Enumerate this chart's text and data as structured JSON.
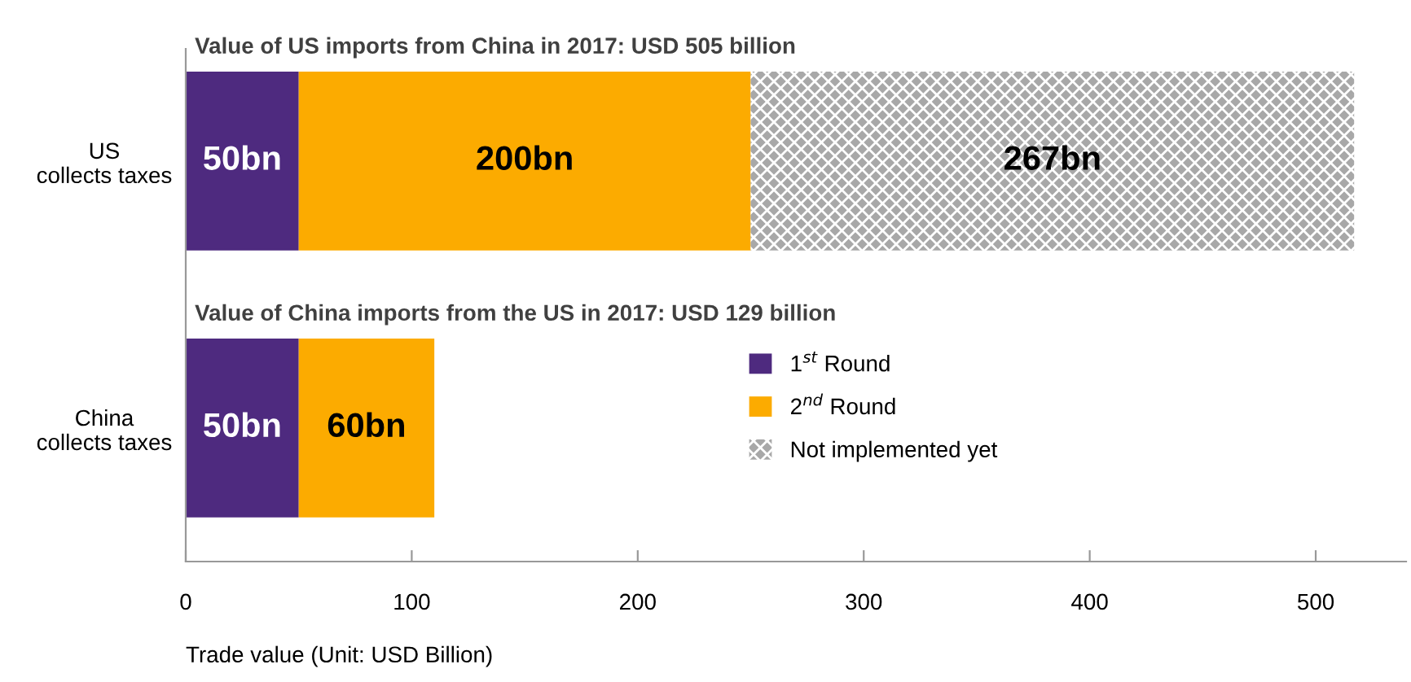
{
  "chart_data": {
    "type": "bar",
    "orientation": "horizontal",
    "stacked": true,
    "categories": [
      "US\ncollects taxes",
      "China\ncollects taxes"
    ],
    "series": [
      {
        "name": "1$^{st}$ Round",
        "color": "#4e2a7f",
        "values": [
          50,
          50
        ],
        "value_labels": [
          "50bn",
          "50bn"
        ]
      },
      {
        "name": "2$^{nd}$ Round",
        "color": "#fcab00",
        "values": [
          200,
          60
        ],
        "value_labels": [
          "200bn",
          "60bn"
        ]
      },
      {
        "name": "Not implemented yet",
        "color": "#a8a8a8",
        "values": [
          267,
          null
        ],
        "value_labels": [
          "267bn",
          null
        ]
      }
    ],
    "annotations": [
      "Value of US imports from China in 2017: USD 505 billion",
      "Value of China imports from the US in 2017: USD 129 billion"
    ],
    "xlabel": "Trade value (Unit: USD Billion)",
    "xlim": [
      0,
      540
    ],
    "xticks": [
      0,
      100,
      200,
      300,
      400,
      500
    ],
    "legend": "center",
    "grid": false
  }
}
